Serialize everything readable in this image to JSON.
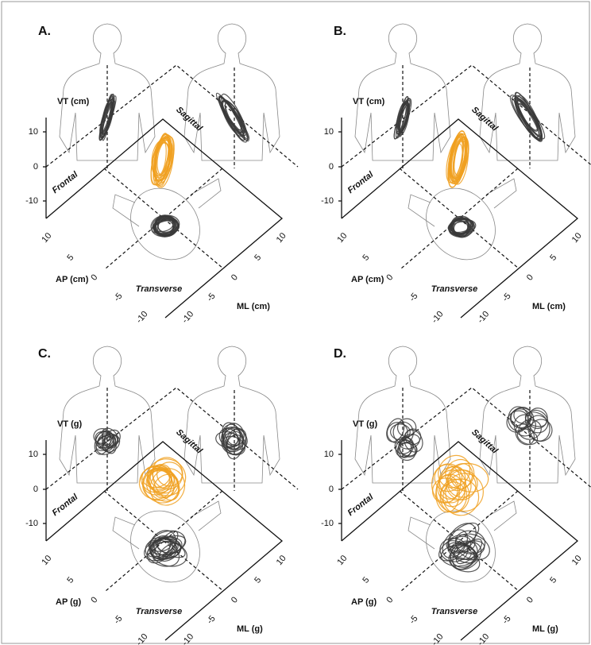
{
  "panels": [
    {
      "label": "A.",
      "vt_axis": "VT (cm)",
      "ap_axis": "AP (cm)",
      "ml_axis": "ML (cm)",
      "vt_ticks": [
        "10",
        "0",
        "-10"
      ],
      "ap_ticks": [
        "10",
        "5",
        "0",
        "-5",
        "-10"
      ],
      "ml_ticks": [
        "-10",
        "-5",
        "0",
        "5",
        "10"
      ],
      "planes": [
        "Frontal",
        "Sagittal",
        "Transverse"
      ]
    },
    {
      "label": "B.",
      "vt_axis": "VT (cm)",
      "ap_axis": "AP (cm)",
      "ml_axis": "ML (cm)",
      "vt_ticks": [
        "10",
        "0",
        "-10"
      ],
      "ap_ticks": [
        "10",
        "5",
        "0",
        "-5",
        "-10"
      ],
      "ml_ticks": [
        "-10",
        "-5",
        "0",
        "5",
        "10"
      ],
      "planes": [
        "Frontal",
        "Sagittal",
        "Transverse"
      ]
    },
    {
      "label": "C.",
      "vt_axis": "VT (g)",
      "ap_axis": "AP (g)",
      "ml_axis": "ML (g)",
      "vt_ticks": [
        "10",
        "0",
        "-10"
      ],
      "ap_ticks": [
        "10",
        "5",
        "0",
        "-5",
        "-10"
      ],
      "ml_ticks": [
        "-10",
        "-5",
        "0",
        "5",
        "10"
      ],
      "planes": [
        "Frontal",
        "Sagittal",
        "Transverse"
      ]
    },
    {
      "label": "D.",
      "vt_axis": "VT (g)",
      "ap_axis": "AP (g)",
      "ml_axis": "ML (g)",
      "vt_ticks": [
        "10",
        "0",
        "-10"
      ],
      "ap_ticks": [
        "10",
        "5",
        "0",
        "-5",
        "-10"
      ],
      "ml_ticks": [
        "-10",
        "-5",
        "0",
        "5",
        "10"
      ],
      "planes": [
        "Frontal",
        "Sagittal",
        "Transverse"
      ]
    }
  ]
}
